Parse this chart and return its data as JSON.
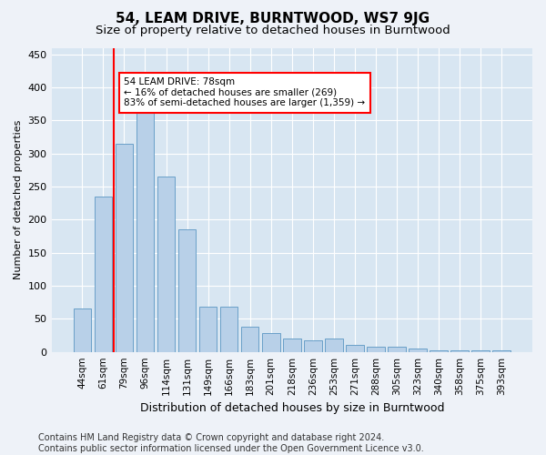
{
  "title": "54, LEAM DRIVE, BURNTWOOD, WS7 9JG",
  "subtitle": "Size of property relative to detached houses in Burntwood",
  "xlabel": "Distribution of detached houses by size in Burntwood",
  "ylabel": "Number of detached properties",
  "categories": [
    "44sqm",
    "61sqm",
    "79sqm",
    "96sqm",
    "114sqm",
    "131sqm",
    "149sqm",
    "166sqm",
    "183sqm",
    "201sqm",
    "218sqm",
    "236sqm",
    "253sqm",
    "271sqm",
    "288sqm",
    "305sqm",
    "323sqm",
    "340sqm",
    "358sqm",
    "375sqm",
    "393sqm"
  ],
  "values": [
    65,
    235,
    315,
    370,
    265,
    185,
    68,
    68,
    38,
    28,
    20,
    18,
    20,
    10,
    8,
    8,
    5,
    2,
    2,
    2,
    2
  ],
  "bar_color": "#b8d0e8",
  "bar_edge_color": "#6aa0c8",
  "annotation_text": "54 LEAM DRIVE: 78sqm\n← 16% of detached houses are smaller (269)\n83% of semi-detached houses are larger (1,359) →",
  "annotation_box_color": "white",
  "annotation_box_edge_color": "red",
  "vline_color": "red",
  "vline_x": 1.5,
  "ylim": [
    0,
    460
  ],
  "yticks": [
    0,
    50,
    100,
    150,
    200,
    250,
    300,
    350,
    400,
    450
  ],
  "footer": "Contains HM Land Registry data © Crown copyright and database right 2024.\nContains public sector information licensed under the Open Government Licence v3.0.",
  "background_color": "#eef2f8",
  "plot_background_color": "#d8e6f2",
  "grid_color": "white",
  "title_fontsize": 11,
  "subtitle_fontsize": 9.5,
  "xlabel_fontsize": 9,
  "ylabel_fontsize": 8,
  "footer_fontsize": 7,
  "tick_fontsize": 7.5,
  "ytick_fontsize": 8
}
